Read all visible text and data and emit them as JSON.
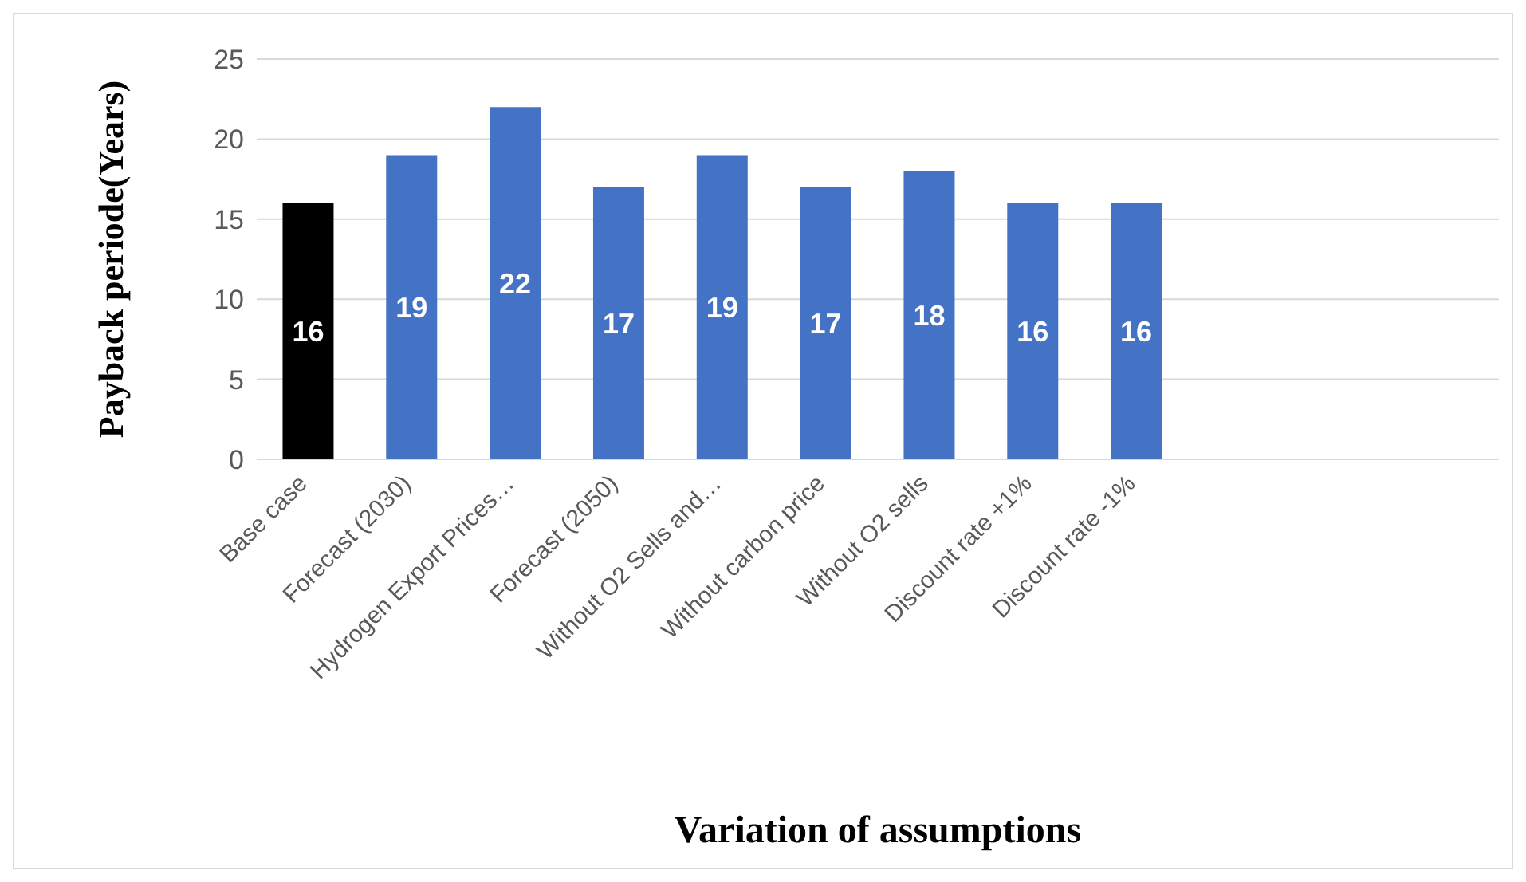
{
  "chart_data": {
    "type": "bar",
    "xlabel": "Variation of assumptions",
    "ylabel": "Payback periode(Years)",
    "categories": [
      "Base case",
      "Forecast (2030)",
      "Hydrogen Export Prices…",
      "Forecast (2050)",
      "Without O2 Sells and…",
      "Without carbon price",
      "Without O2 sells",
      "Discount rate +1%",
      "Discount rate -1%",
      null,
      null,
      null
    ],
    "values": [
      16,
      19,
      22,
      17,
      19,
      17,
      18,
      16,
      16,
      null,
      null,
      null
    ],
    "colors": [
      "#000000",
      "#4472c4",
      "#4472c4",
      "#4472c4",
      "#4472c4",
      "#4472c4",
      "#4472c4",
      "#4472c4",
      "#4472c4",
      "#4472c4",
      "#4472c4",
      "#4472c4"
    ],
    "ylim": [
      0,
      25
    ],
    "yticks": [
      0,
      5,
      10,
      15,
      20,
      25
    ],
    "grid": "y",
    "data_labels": true
  }
}
